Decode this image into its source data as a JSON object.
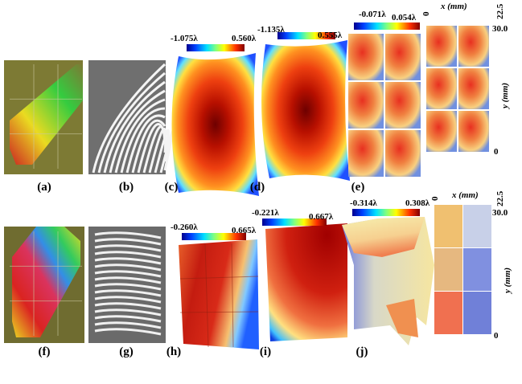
{
  "panels": [
    {
      "label": "(a)"
    },
    {
      "label": "(b)"
    },
    {
      "label": "(c)"
    },
    {
      "label": "(d)"
    },
    {
      "label": "(e)"
    },
    {
      "label": "(f)"
    },
    {
      "label": "(g)"
    },
    {
      "label": "(h)"
    },
    {
      "label": "(i)"
    },
    {
      "label": "(j)"
    }
  ],
  "colorbars": [
    {
      "min": "-1.075λ",
      "max": "0.560λ"
    },
    {
      "min": "-1.135λ",
      "max": "0.555λ"
    },
    {
      "min": "-0.071λ",
      "max": "0.054λ"
    },
    {
      "min": "-0.260λ",
      "max": "0.665λ"
    },
    {
      "min": "-0.221λ",
      "max": "0.667λ"
    },
    {
      "min": "-0.314λ",
      "max": "0.308λ"
    }
  ],
  "axes": [
    {
      "x_label": "x (mm)",
      "y_label": "y (mm)",
      "x_ticks": [
        "0",
        "22.5"
      ],
      "y_ticks": [
        "30.0",
        "0"
      ]
    },
    {
      "x_label": "x (mm)",
      "y_label": "y (mm)",
      "x_ticks": [
        "0",
        "22.5"
      ],
      "y_ticks": [
        "30.0",
        "0"
      ]
    }
  ]
}
